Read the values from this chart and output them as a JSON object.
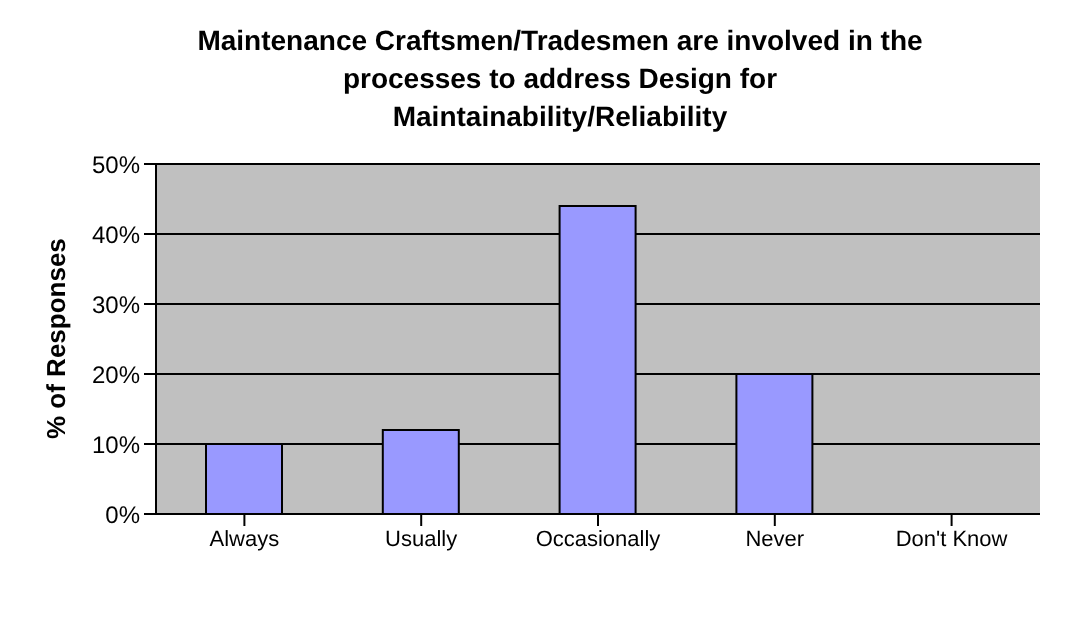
{
  "chart_data": {
    "type": "bar",
    "title": "Maintenance Craftsmen/Tradesmen are involved in the processes to address Design for Maintainability/Reliability",
    "ylabel": "% of Responses",
    "categories": [
      "Always",
      "Usually",
      "Occasionally",
      "Never",
      "Don't Know"
    ],
    "values": [
      10,
      12,
      44,
      20,
      0
    ],
    "color": "#9999ff",
    "ylim": [
      0,
      50
    ],
    "yticks": [
      {
        "value": 0,
        "label": "0%"
      },
      {
        "value": 10,
        "label": "10%"
      },
      {
        "value": 20,
        "label": "20%"
      },
      {
        "value": 30,
        "label": "30%"
      },
      {
        "value": 40,
        "label": "40%"
      },
      {
        "value": 50,
        "label": "50%"
      }
    ],
    "grid": "y"
  }
}
